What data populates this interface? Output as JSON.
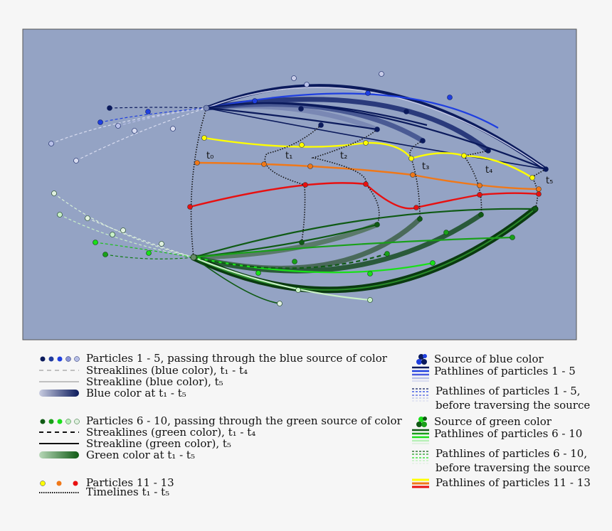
{
  "colors": {
    "background": "#f6f6f6",
    "panel": "#94a3c4",
    "navy": "#0b1a5c",
    "blue": "#1f3fe0",
    "darkgreen": "#0f5a14",
    "green": "#19c019",
    "yellow": "#ffff00",
    "orange": "#f07818",
    "red": "#e81010"
  },
  "time_labels": [
    "t₀",
    "t₁",
    "t₂",
    "t₃",
    "t₄",
    "t₅"
  ],
  "legend_left": [
    {
      "label": "Particles 1 - 5, passing through the blue source of color",
      "swatch": "blue-dots"
    },
    {
      "label": "Streaklines (blue color), t₁ - t₄",
      "swatch": "dash-light"
    },
    {
      "label": "Streakline   (blue color), t₅",
      "swatch": "solid-light"
    },
    {
      "label": "Blue color at t₁ - t₅",
      "swatch": "blue-gradient"
    },
    {
      "label": "Particles 6 - 10, passing through the green source of color",
      "swatch": "green-dots"
    },
    {
      "label": "Streaklines (green color), t₁ - t₄",
      "swatch": "dash-dark"
    },
    {
      "label": "Streakline   (green color), t₅",
      "swatch": "solid-dark"
    },
    {
      "label": "Green color at t₁ - t₅",
      "swatch": "green-gradient"
    },
    {
      "label": "Particles 11 - 13",
      "swatch": "warm-dots"
    },
    {
      "label": "Timelines t₁ - t₅",
      "swatch": "dotted"
    }
  ],
  "legend_right": [
    {
      "label": "Source of blue color",
      "swatch": "blue-source"
    },
    {
      "label": "Pathlines of particles 1 - 5",
      "swatch": "blue-lines"
    },
    {
      "label": "Pathlines of particles 1 - 5,",
      "swatch": "blue-dashed-lines"
    },
    {
      "label": "before traversing the source",
      "swatch": "none"
    },
    {
      "label": "Source of green color",
      "swatch": "green-source"
    },
    {
      "label": "Pathlines of particles 6 - 10",
      "swatch": "green-lines"
    },
    {
      "label": "Pathlines of particles 6 - 10,",
      "swatch": "green-dashed-lines"
    },
    {
      "label": "before traversing the source",
      "swatch": "none"
    },
    {
      "label": "Pathlines of particles 11 - 13",
      "swatch": "warm-lines"
    }
  ]
}
